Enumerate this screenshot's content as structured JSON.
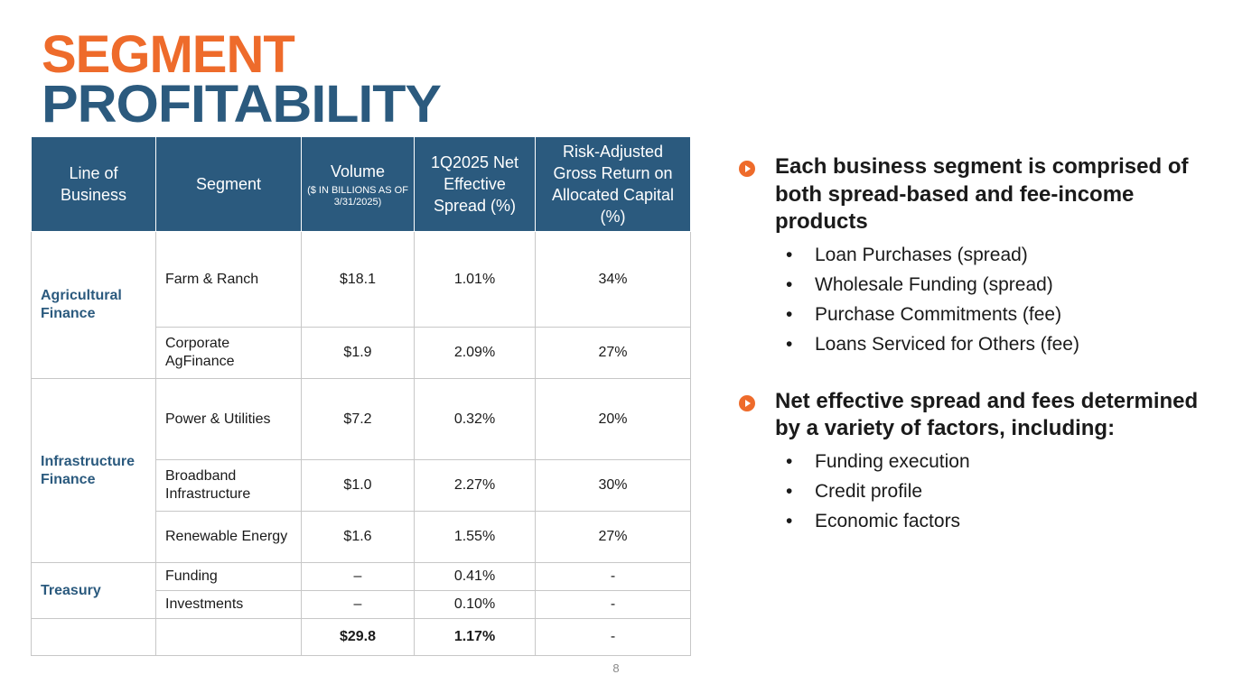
{
  "title": {
    "line1": "SEGMENT",
    "line2": "PROFITABILITY"
  },
  "table": {
    "headers": {
      "line_of_business": "Line of Business",
      "segment": "Segment",
      "volume": "Volume",
      "volume_sub": "($ IN BILLIONS AS OF 3/31/2025)",
      "spread": "1Q2025 Net Effective Spread (%)",
      "return": "Risk-Adjusted Gross Return on Allocated Capital (%)"
    },
    "groups": {
      "ag": "Agricultural Finance",
      "infra": "Infrastructure Finance",
      "treasury": "Treasury"
    },
    "rows": [
      {
        "segment": "Farm & Ranch",
        "volume": "$18.1",
        "spread": "1.01%",
        "return": "34%"
      },
      {
        "segment": "Corporate AgFinance",
        "volume": "$1.9",
        "spread": "2.09%",
        "return": "27%"
      },
      {
        "segment": "Power & Utilities",
        "volume": "$7.2",
        "spread": "0.32%",
        "return": "20%"
      },
      {
        "segment": "Broadband Infrastructure",
        "volume": "$1.0",
        "spread": "2.27%",
        "return": "30%"
      },
      {
        "segment": "Renewable Energy",
        "volume": "$1.6",
        "spread": "1.55%",
        "return": "27%"
      },
      {
        "segment": "Funding",
        "volume": "–",
        "spread": "0.41%",
        "return": "-"
      },
      {
        "segment": "Investments",
        "volume": "–",
        "spread": "0.10%",
        "return": "-"
      }
    ],
    "total": {
      "volume": "$29.8",
      "spread": "1.17%",
      "return": "-"
    }
  },
  "page_number": "8",
  "bullets": [
    {
      "heading": "Each business segment is comprised of both spread-based and fee-income products",
      "items": [
        "Loan Purchases (spread)",
        "Wholesale Funding (spread)",
        "Purchase Commitments (fee)",
        "Loans Serviced for Others (fee)"
      ]
    },
    {
      "heading": "Net effective spread and fees determined by a variety of factors, including:",
      "items": [
        "Funding execution",
        "Credit profile",
        "Economic factors"
      ]
    }
  ],
  "colors": {
    "orange": "#ee6b2b",
    "navy": "#2b5a7e"
  },
  "icons": {
    "bullet": "play-circle-icon"
  }
}
